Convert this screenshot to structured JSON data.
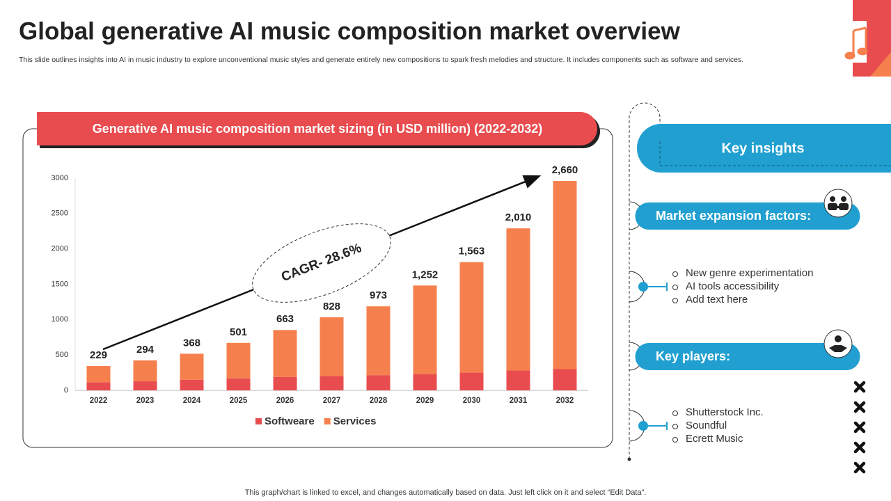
{
  "header": {
    "title": "Global generative AI music composition market overview",
    "subtitle": "This slide outlines insights into AI in music industry to explore unconventional music styles and generate entirely new compositions to spark fresh melodies and structure.  It includes components such as software and services."
  },
  "chart_data": {
    "type": "bar",
    "stacked": true,
    "title": "Generative AI music composition market sizing (in USD million) (2022-2032)",
    "annotation": "CAGR- 28.6%",
    "categories": [
      "2022",
      "2023",
      "2024",
      "2025",
      "2026",
      "2027",
      "2028",
      "2029",
      "2030",
      "2031",
      "2032"
    ],
    "series": [
      {
        "name": "Softweare",
        "color": "#e84c4f",
        "values": [
          115,
          130,
          150,
          170,
          190,
          205,
          215,
          230,
          250,
          280,
          300
        ]
      },
      {
        "name": "Services",
        "color": "#f6804d",
        "values": [
          229,
          294,
          368,
          501,
          663,
          828,
          973,
          1252,
          1563,
          2010,
          2660
        ],
        "value_labels": [
          "229",
          "294",
          "368",
          "501",
          "663",
          "828",
          "973",
          "1,252",
          "1,563",
          "2,010",
          "2,660"
        ]
      }
    ],
    "ylim": [
      0,
      3000
    ],
    "yticks": [
      0,
      500,
      1000,
      1500,
      2000,
      2500,
      3000
    ],
    "grid": false,
    "legend": "bottom"
  },
  "insights": {
    "title": "Key insights",
    "sections": [
      {
        "heading": "Market expansion factors:",
        "items": [
          "New genre experimentation",
          "AI tools accessibility",
          "Add text here"
        ]
      },
      {
        "heading": "Key players:",
        "items": [
          "Shutterstock Inc.",
          "Soundful",
          "Ecrett Music"
        ]
      }
    ]
  },
  "footer": "This graph/chart is linked to excel,  and changes automatically based on data. Just left click on it and select “Edit Data”."
}
